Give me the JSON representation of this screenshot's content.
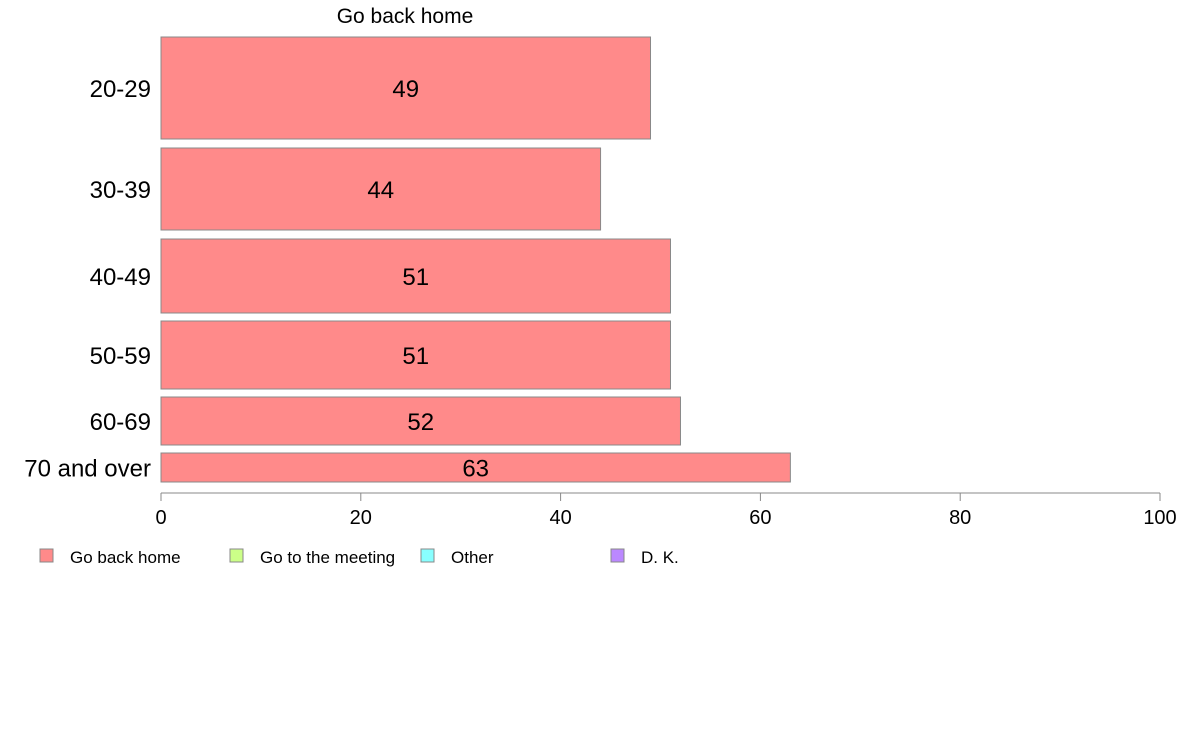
{
  "chart_data": {
    "type": "bar",
    "orientation": "horizontal",
    "title": "Go back home",
    "categories": [
      "20-29",
      "30-39",
      "40-49",
      "50-59",
      "60-69",
      "70 and over"
    ],
    "series": [
      {
        "name": "Go back home",
        "color": "#ff8a8a",
        "values": [
          49,
          44,
          51,
          51,
          52,
          63
        ]
      }
    ],
    "xlim": [
      0,
      100
    ],
    "xticks": [
      "0",
      "20",
      "40",
      "60",
      "80",
      "100"
    ],
    "grid": false,
    "legend": {
      "position": "bottom-left",
      "items": [
        {
          "label": "Go back home",
          "color": "#ff8a8a"
        },
        {
          "label": "Go to the meeting",
          "color": "#ccff88"
        },
        {
          "label": "Other",
          "color": "#88ffff"
        },
        {
          "label": "D. K.",
          "color": "#bb88ff"
        }
      ]
    }
  }
}
